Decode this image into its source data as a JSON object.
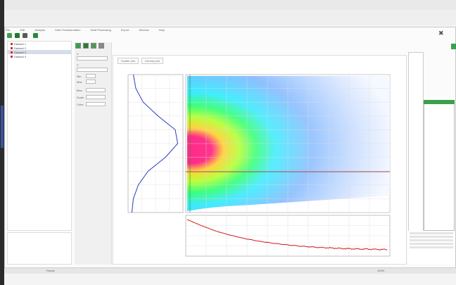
{
  "menu": [
    "File",
    "Edit",
    "Analysis",
    "Data Transformation",
    "Data Processing",
    "Export",
    "Window",
    "Help"
  ],
  "tree": {
    "items": [
      "Dataset 1",
      "Dataset 2",
      "Dataset 3",
      "Dataset 4"
    ]
  },
  "tabs": [
    "Scatter plot",
    "Density plot"
  ],
  "controls": {
    "labels": [
      "X",
      "Y",
      "Min",
      "Max",
      "Bins",
      "Scale",
      "Color"
    ]
  },
  "status": {
    "left": "Ready",
    "right": "100%"
  },
  "colors": {
    "accent_green": "#3aa04a",
    "curve_blue": "#2a3dbf",
    "curve_red": "#d11a1a",
    "hline": "#8b1a1a",
    "density_low": "#6aa8ff",
    "density_high": "#ff2a88"
  },
  "icons": [
    "open-folder-icon",
    "save-icon",
    "refresh-icon",
    "play-icon",
    "close-icon"
  ],
  "chart_data": [
    {
      "type": "heatmap",
      "title": "",
      "xlabel": "",
      "ylabel": "",
      "grid": true,
      "description_level": "density scatter: high density near left edge at middle height"
    },
    {
      "type": "line",
      "title": "",
      "xlabel": "",
      "ylabel": "",
      "series": [
        {
          "values": [
            0.05,
            0.1,
            0.25,
            0.55,
            0.9,
            0.95,
            0.7,
            0.35,
            0.15,
            0.05,
            0.02
          ]
        }
      ]
    },
    {
      "type": "line",
      "title": "",
      "xlabel": "",
      "ylabel": "",
      "series": [
        {
          "values": [
            1.0,
            0.82,
            0.66,
            0.54,
            0.44,
            0.36,
            0.3,
            0.25,
            0.21,
            0.18,
            0.16,
            0.14,
            0.13,
            0.12,
            0.11
          ]
        }
      ]
    }
  ]
}
